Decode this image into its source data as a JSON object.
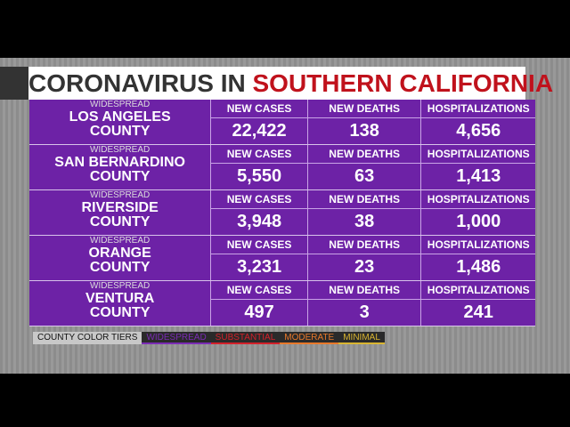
{
  "header": {
    "title_lead": "CORONAVIRUS IN",
    "title_region": "SOUTHERN CALIFORNIA"
  },
  "table": {
    "rows": [
      {
        "tier": "WIDESPREAD",
        "county": "LOS ANGELES",
        "suffix": "COUNTY",
        "cells": [
          {
            "label": "NEW CASES",
            "value": "22,422"
          },
          {
            "label": "NEW DEATHS",
            "value": "138"
          },
          {
            "label": "HOSPITALIZATIONS",
            "value": "4,656"
          }
        ]
      },
      {
        "tier": "WIDESPREAD",
        "county": "SAN BERNARDINO",
        "suffix": "COUNTY",
        "cells": [
          {
            "label": "NEW CASES",
            "value": "5,550"
          },
          {
            "label": "NEW DEATHS",
            "value": "63"
          },
          {
            "label": "HOSPITALIZATIONS",
            "value": "1,413"
          }
        ]
      },
      {
        "tier": "WIDESPREAD",
        "county": "RIVERSIDE",
        "suffix": "COUNTY",
        "cells": [
          {
            "label": "NEW CASES",
            "value": "3,948"
          },
          {
            "label": "NEW DEATHS",
            "value": "38"
          },
          {
            "label": "HOSPITALIZATIONS",
            "value": "1,000"
          }
        ]
      },
      {
        "tier": "WIDESPREAD",
        "county": "ORANGE",
        "suffix": "COUNTY",
        "cells": [
          {
            "label": "NEW CASES",
            "value": "3,231"
          },
          {
            "label": "NEW DEATHS",
            "value": "23"
          },
          {
            "label": "HOSPITALIZATIONS",
            "value": "1,486"
          }
        ]
      },
      {
        "tier": "WIDESPREAD",
        "county": "VENTURA",
        "suffix": "COUNTY",
        "cells": [
          {
            "label": "NEW CASES",
            "value": "497"
          },
          {
            "label": "NEW DEATHS",
            "value": "3"
          },
          {
            "label": "HOSPITALIZATIONS",
            "value": "241"
          }
        ]
      }
    ]
  },
  "legend": {
    "title": "COUNTY COLOR TIERS",
    "tiers": [
      {
        "label": "WIDESPREAD",
        "color": "#7b2bb5"
      },
      {
        "label": "SUBSTANTIAL",
        "color": "#d3202a"
      },
      {
        "label": "MODERATE",
        "color": "#e8782a"
      },
      {
        "label": "MINIMAL",
        "color": "#d9b531"
      }
    ]
  }
}
